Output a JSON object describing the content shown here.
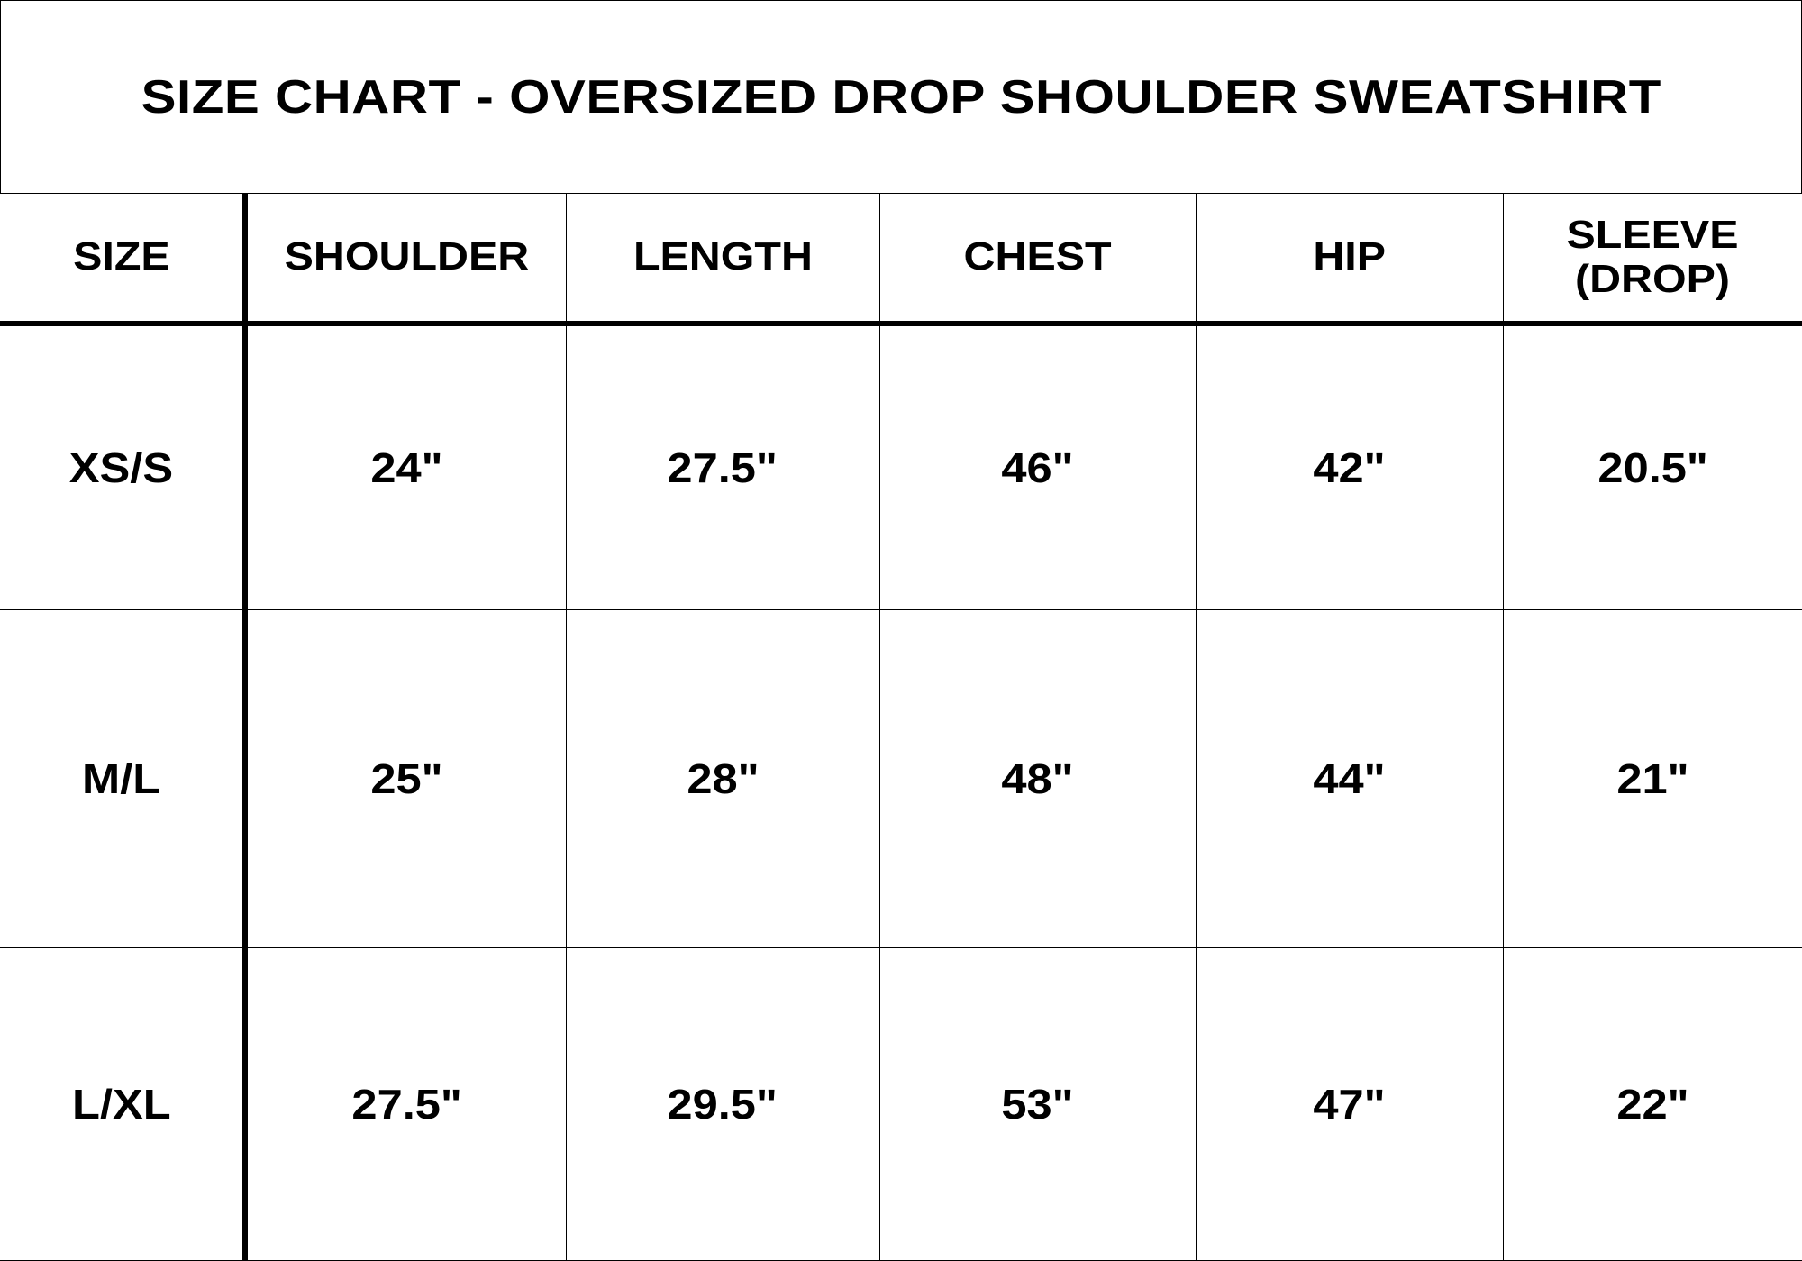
{
  "title": "SIZE CHART - OVERSIZED DROP SHOULDER SWEATSHIRT",
  "table": {
    "headers": [
      "SIZE",
      "SHOULDER",
      "LENGTH",
      "CHEST",
      "HIP",
      "SLEEVE (DROP)"
    ],
    "rows": [
      [
        "XS/S",
        "24\"",
        "27.5\"",
        "46\"",
        "42\"",
        "20.5\""
      ],
      [
        "M/L",
        "25\"",
        "28\"",
        "48\"",
        "44\"",
        "21\""
      ],
      [
        "L/XL",
        "27.5\"",
        "29.5\"",
        "53\"",
        "47\"",
        "22\""
      ]
    ]
  }
}
